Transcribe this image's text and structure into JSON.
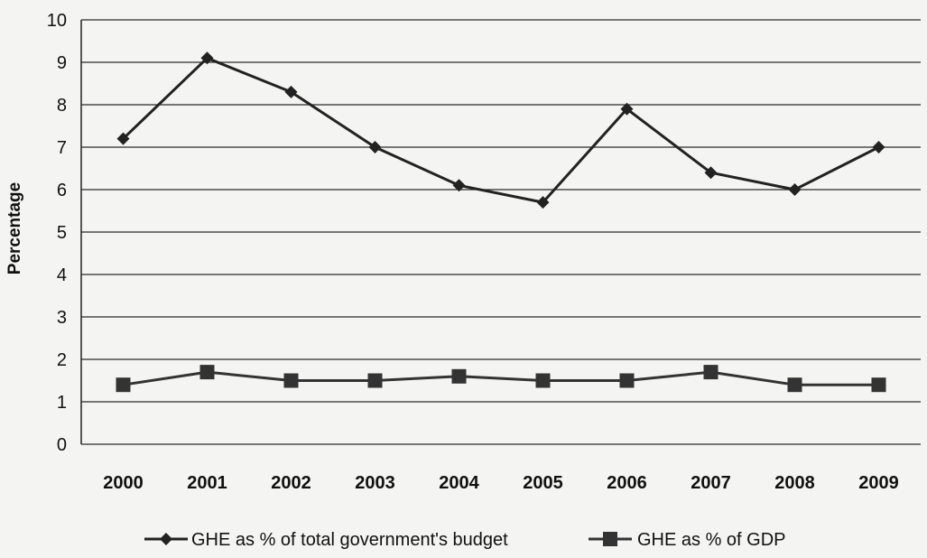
{
  "chart_data": {
    "type": "line",
    "title": "",
    "xlabel": "",
    "ylabel": "Percentage",
    "ylim": [
      0,
      10
    ],
    "yticks": [
      0,
      1,
      2,
      3,
      4,
      5,
      6,
      7,
      8,
      9,
      10
    ],
    "grid": true,
    "legend_position": "bottom",
    "categories": [
      "2000",
      "2001",
      "2002",
      "2003",
      "2004",
      "2005",
      "2006",
      "2007",
      "2008",
      "2009"
    ],
    "series": [
      {
        "name": "GHE  as % of total government's budget",
        "marker": "diamond",
        "color": "#222222",
        "values": [
          7.2,
          9.1,
          8.3,
          7.0,
          6.1,
          5.7,
          7.9,
          6.4,
          6.0,
          7.0
        ]
      },
      {
        "name": "GHE as % of GDP",
        "marker": "square",
        "color": "#333333",
        "values": [
          1.4,
          1.7,
          1.5,
          1.5,
          1.6,
          1.5,
          1.5,
          1.7,
          1.4,
          1.4
        ]
      }
    ]
  }
}
